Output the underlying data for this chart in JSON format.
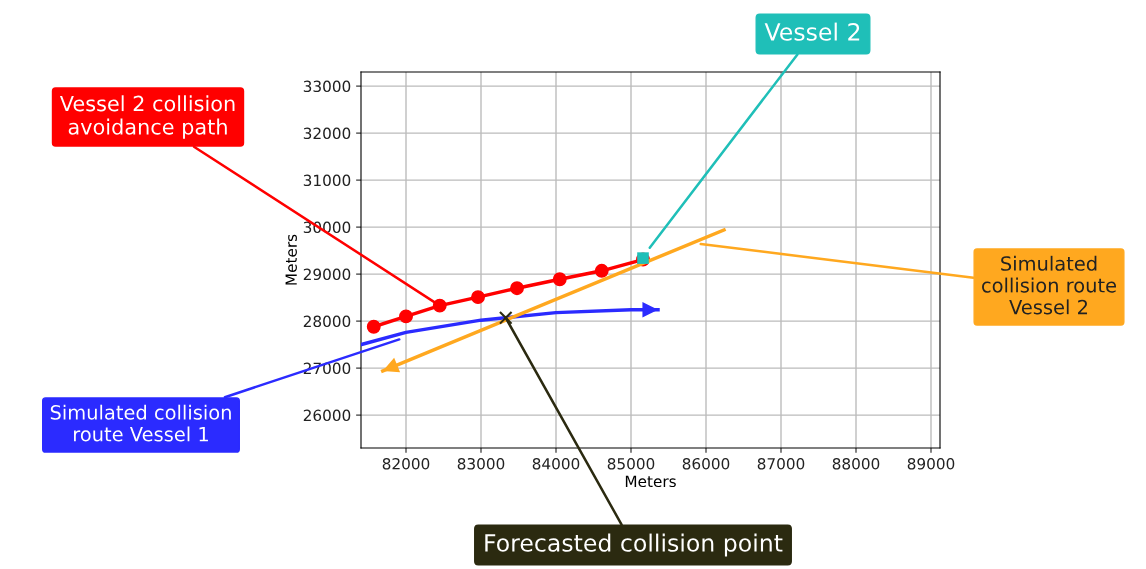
{
  "chart_data": {
    "type": "line",
    "xlabel": "Meters",
    "ylabel": "Meters",
    "xlim": [
      81400,
      89120
    ],
    "ylim": [
      25300,
      33300
    ],
    "xticks": [
      82000,
      83000,
      84000,
      85000,
      86000,
      87000,
      88000,
      89000
    ],
    "yticks": [
      26000,
      27000,
      28000,
      29000,
      30000,
      31000,
      32000,
      33000
    ],
    "grid": true,
    "legend": false,
    "line_style": "solid",
    "series": [
      {
        "type": "line",
        "marker": "circle",
        "color": "#ff0000",
        "x": [
          81570,
          82000,
          82450,
          82960,
          83480,
          84050,
          84610,
          85160
        ],
        "values": [
          27880,
          28100,
          28330,
          28510,
          28700,
          28890,
          29070,
          29310
        ]
      },
      {
        "type": "scatter",
        "marker": "square",
        "color": "#1fbfb8",
        "x": [
          85160
        ],
        "values": [
          29340
        ]
      },
      {
        "type": "line",
        "marker": "none",
        "color": "#2b2bff",
        "x": [
          81400,
          82000,
          83000,
          84000,
          85000,
          85360
        ],
        "values": [
          27500,
          27760,
          28020,
          28180,
          28240,
          28240
        ]
      },
      {
        "type": "line",
        "marker": "none",
        "color": "#ffa81f",
        "x": [
          86240,
          81690
        ],
        "values": [
          29940,
          26940
        ]
      },
      {
        "type": "scatter",
        "marker": "cross",
        "color": "#2b2a10",
        "x": [
          83330
        ],
        "values": [
          28070
        ]
      }
    ],
    "annotations": [
      {
        "text": "Vessel 2 collision\navoidance path",
        "x": 82450,
        "y": 28330
      },
      {
        "text": "Vessel 2",
        "x": 85250,
        "y": 29560
      },
      {
        "text": "Simulated collision\nroute Vessel 1",
        "x": 81910,
        "y": 27610
      },
      {
        "text": "Simulated\ncollision route\nVessel 2",
        "x": 85930,
        "y": 29640
      },
      {
        "text": "Forecasted collision point",
        "x": 83330,
        "y": 28070
      }
    ]
  }
}
